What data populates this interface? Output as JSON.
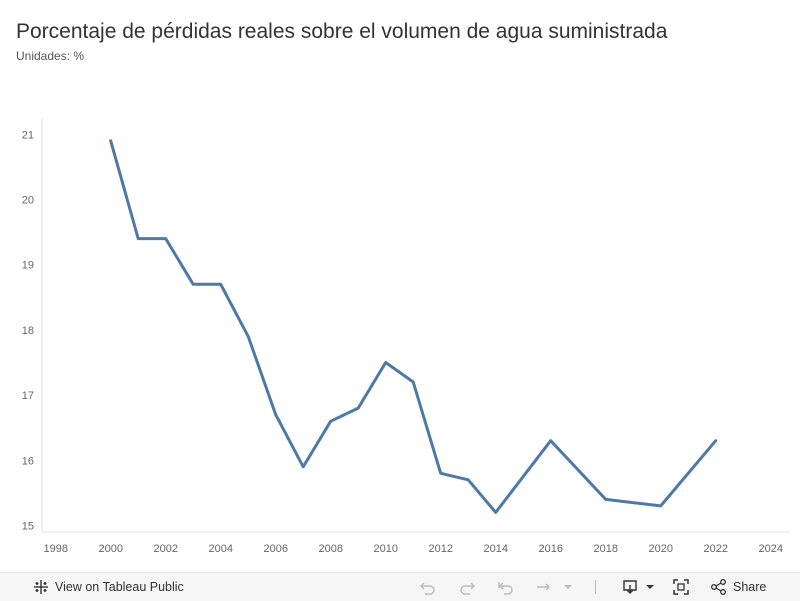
{
  "chart_data": {
    "type": "line",
    "title": "Porcentaje de pérdidas reales sobre el volumen de agua suministrada",
    "subtitle": "Unidades: %",
    "xlabel": "",
    "ylabel": "",
    "x": [
      2000,
      2001,
      2002,
      2003,
      2004,
      2005,
      2006,
      2007,
      2008,
      2009,
      2010,
      2011,
      2012,
      2013,
      2014,
      2016,
      2018,
      2020,
      2022
    ],
    "series": [
      {
        "values": [
          20.9,
          19.4,
          19.4,
          18.7,
          18.7,
          17.9,
          16.7,
          15.9,
          16.6,
          16.8,
          17.5,
          17.2,
          15.8,
          15.7,
          15.2,
          16.3,
          15.4,
          15.3,
          16.3
        ],
        "color": "#4e79a7"
      }
    ],
    "xlim": [
      1997.5,
      2024.7
    ],
    "ylim": [
      14.9,
      21.25
    ],
    "xticks": [
      "1998",
      "2000",
      "2002",
      "2004",
      "2006",
      "2008",
      "2010",
      "2012",
      "2014",
      "2016",
      "2018",
      "2020",
      "2022",
      "2024"
    ],
    "yticks": [
      "15",
      "16",
      "17",
      "18",
      "19",
      "20",
      "21"
    ],
    "grid": false,
    "legend": "none"
  },
  "toolbar": {
    "view_label": "View on Tableau Public",
    "share_label": "Share"
  }
}
